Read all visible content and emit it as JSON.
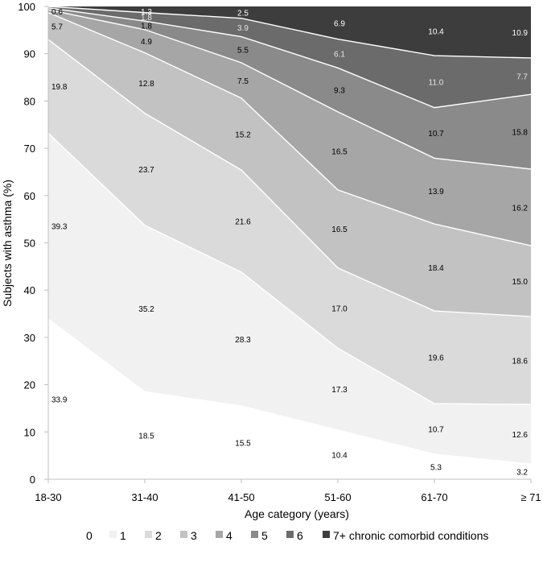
{
  "chart_data": {
    "type": "area",
    "stacked": true,
    "categories": [
      "18-30",
      "31-40",
      "41-50",
      "51-60",
      "61-70",
      "≥ 71"
    ],
    "xlabel": "Age category (years)",
    "ylabel": "Subjects with asthma (%)",
    "ylim": [
      0,
      100
    ],
    "yticks": [
      0,
      10,
      20,
      30,
      40,
      50,
      60,
      70,
      80,
      90,
      100
    ],
    "grid": false,
    "legend_position": "bottom",
    "series": [
      {
        "name": "0",
        "color": "#ffffff",
        "label_color": "#000000",
        "values": [
          33.9,
          18.5,
          15.5,
          10.4,
          5.3,
          3.2
        ]
      },
      {
        "name": "1",
        "color": "#f1f1f1",
        "label_color": "#000000",
        "values": [
          39.3,
          35.2,
          28.3,
          17.3,
          10.7,
          12.6
        ]
      },
      {
        "name": "2",
        "color": "#dadada",
        "label_color": "#000000",
        "values": [
          19.8,
          23.7,
          21.6,
          17.0,
          19.6,
          18.6
        ]
      },
      {
        "name": "3",
        "color": "#c2c2c2",
        "label_color": "#000000",
        "values": [
          5.7,
          12.8,
          15.2,
          16.5,
          18.4,
          15.0
        ]
      },
      {
        "name": "4",
        "color": "#a6a6a6",
        "label_color": "#000000",
        "values": [
          0.6,
          4.9,
          7.5,
          16.5,
          13.9,
          16.2
        ]
      },
      {
        "name": "5",
        "color": "#8a8a8a",
        "label_color": "#000000",
        "values": [
          0.4,
          1.8,
          5.5,
          9.3,
          10.7,
          15.8
        ]
      },
      {
        "name": "6",
        "color": "#6b6b6b",
        "label_color": "#e6e6e6",
        "values": [
          0.3,
          1.8,
          3.9,
          6.1,
          11.0,
          7.7
        ]
      },
      {
        "name": "7+ chronic comorbid conditions",
        "color": "#3d3d3d",
        "label_color": "#ffffff",
        "values": [
          0.0,
          1.3,
          2.5,
          6.9,
          10.4,
          10.9
        ]
      }
    ],
    "data_labels": [
      [
        "33.9",
        "18.5",
        "15.5",
        "10.4",
        "5.3",
        "3.2"
      ],
      [
        "39.3",
        "35.2",
        "28.3",
        "17.3",
        "10.7",
        "12.6"
      ],
      [
        "19.8",
        "23.7",
        "21.6",
        "17.0",
        "19.6",
        "18.6"
      ],
      [
        "5.7",
        "12.8",
        "15.2",
        "16.5",
        "18.4",
        "15.0"
      ],
      [
        "0.6",
        "4.9",
        "7.5",
        "16.5",
        "13.9",
        "16.2"
      ],
      [
        "",
        "1.8",
        "5.5",
        "9.3",
        "10.7",
        "15.8"
      ],
      [
        "",
        "1.8",
        "3.9",
        "6.1",
        "11.0",
        "7.7"
      ],
      [
        "",
        "1.3",
        "2.5",
        "6.9",
        "10.4",
        "10.9"
      ]
    ]
  }
}
